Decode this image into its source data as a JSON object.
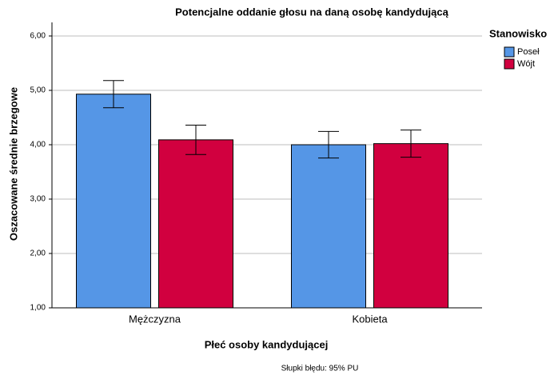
{
  "chart_data": {
    "type": "bar",
    "title": "Potencjalne oddanie głosu na daną osobę kandydującą",
    "x_label": "Płeć osoby kandydującej",
    "y_label": "Oszacowane średnie brzegowe",
    "legend_title": "Stanowisko",
    "footnote": "Słupki błędu: 95% PU",
    "categories": [
      "Mężczyzna",
      "Kobieta"
    ],
    "series": [
      {
        "name": "Poseł",
        "color": "#5596e6",
        "values": [
          4.93,
          4.0
        ],
        "errors": [
          0.25,
          0.245
        ]
      },
      {
        "name": "Wójt",
        "color": "#d1003f",
        "values": [
          4.09,
          4.02
        ],
        "errors": [
          0.27,
          0.25
        ]
      }
    ],
    "ylim": [
      1,
      6.25
    ],
    "yticks": [
      {
        "value": 1,
        "label": "1,00"
      },
      {
        "value": 2,
        "label": "2,00"
      },
      {
        "value": 3,
        "label": "3,00"
      },
      {
        "value": 4,
        "label": "4,00"
      },
      {
        "value": 5,
        "label": "5,00"
      },
      {
        "value": 6,
        "label": "6,00"
      }
    ],
    "grid": true,
    "legend_position": "right"
  }
}
